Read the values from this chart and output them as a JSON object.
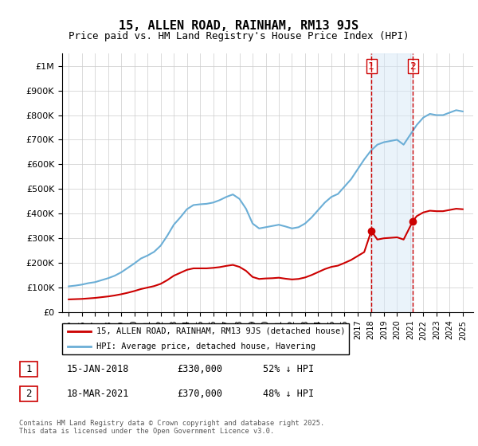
{
  "title": "15, ALLEN ROAD, RAINHAM, RM13 9JS",
  "subtitle": "Price paid vs. HM Land Registry's House Price Index (HPI)",
  "footer": "Contains HM Land Registry data © Crown copyright and database right 2025.\nThis data is licensed under the Open Government Licence v3.0.",
  "legend_line1": "15, ALLEN ROAD, RAINHAM, RM13 9JS (detached house)",
  "legend_line2": "HPI: Average price, detached house, Havering",
  "transaction1_label": "1",
  "transaction1_date": "15-JAN-2018",
  "transaction1_price": "£330,000",
  "transaction1_hpi": "52% ↓ HPI",
  "transaction2_label": "2",
  "transaction2_date": "18-MAR-2021",
  "transaction2_price": "£370,000",
  "transaction2_hpi": "48% ↓ HPI",
  "vline1_x": 2018.04,
  "vline2_x": 2021.21,
  "marker1_x": 2018.04,
  "marker1_y": 330000,
  "marker2_x": 2021.21,
  "marker2_y": 370000,
  "hpi_color": "#6baed6",
  "price_color": "#cc0000",
  "vline_color": "#cc0000",
  "shade_color": "#d6e8f7",
  "background_color": "#ffffff",
  "ylim": [
    0,
    1050000
  ],
  "xlim_start": 1994.5,
  "xlim_end": 2025.8,
  "yticks": [
    0,
    100000,
    200000,
    300000,
    400000,
    500000,
    600000,
    700000,
    800000,
    900000,
    1000000
  ],
  "ytick_labels": [
    "£0",
    "£100K",
    "£200K",
    "£300K",
    "£400K",
    "£500K",
    "£600K",
    "£700K",
    "£800K",
    "£900K",
    "£1M"
  ],
  "xticks": [
    1995,
    1996,
    1997,
    1998,
    1999,
    2000,
    2001,
    2002,
    2003,
    2004,
    2005,
    2006,
    2007,
    2008,
    2009,
    2010,
    2011,
    2012,
    2013,
    2014,
    2015,
    2016,
    2017,
    2018,
    2019,
    2020,
    2021,
    2022,
    2023,
    2024,
    2025
  ],
  "hpi_x": [
    1995.0,
    1995.5,
    1996.0,
    1996.5,
    1997.0,
    1997.5,
    1998.0,
    1998.5,
    1999.0,
    1999.5,
    2000.0,
    2000.5,
    2001.0,
    2001.5,
    2002.0,
    2002.5,
    2003.0,
    2003.5,
    2004.0,
    2004.5,
    2005.0,
    2005.5,
    2006.0,
    2006.5,
    2007.0,
    2007.5,
    2008.0,
    2008.5,
    2009.0,
    2009.5,
    2010.0,
    2010.5,
    2011.0,
    2011.5,
    2012.0,
    2012.5,
    2013.0,
    2013.5,
    2014.0,
    2014.5,
    2015.0,
    2015.5,
    2016.0,
    2016.5,
    2017.0,
    2017.5,
    2018.0,
    2018.5,
    2019.0,
    2019.5,
    2020.0,
    2020.5,
    2021.0,
    2021.5,
    2022.0,
    2022.5,
    2023.0,
    2023.5,
    2024.0,
    2024.5,
    2025.0
  ],
  "hpi_y": [
    105000,
    108000,
    112000,
    118000,
    122000,
    130000,
    138000,
    148000,
    162000,
    180000,
    198000,
    218000,
    230000,
    245000,
    270000,
    310000,
    355000,
    385000,
    418000,
    435000,
    438000,
    440000,
    445000,
    455000,
    468000,
    478000,
    460000,
    420000,
    360000,
    340000,
    345000,
    350000,
    355000,
    348000,
    340000,
    345000,
    360000,
    385000,
    415000,
    445000,
    468000,
    480000,
    510000,
    540000,
    580000,
    620000,
    655000,
    680000,
    690000,
    695000,
    700000,
    680000,
    720000,
    760000,
    790000,
    805000,
    800000,
    800000,
    810000,
    820000,
    815000
  ],
  "price_x": [
    1995.0,
    1995.5,
    1996.0,
    1996.5,
    1997.0,
    1997.5,
    1998.0,
    1998.5,
    1999.0,
    1999.5,
    2000.0,
    2000.5,
    2001.0,
    2001.5,
    2002.0,
    2002.5,
    2003.0,
    2003.5,
    2004.0,
    2004.5,
    2005.0,
    2005.5,
    2006.0,
    2006.5,
    2007.0,
    2007.5,
    2008.0,
    2008.5,
    2009.0,
    2009.5,
    2010.0,
    2010.5,
    2011.0,
    2011.5,
    2012.0,
    2012.5,
    2013.0,
    2013.5,
    2014.0,
    2014.5,
    2015.0,
    2015.5,
    2016.0,
    2016.5,
    2017.0,
    2017.5,
    2018.04,
    2018.5,
    2019.0,
    2019.5,
    2020.0,
    2020.5,
    2021.21,
    2021.5,
    2022.0,
    2022.5,
    2023.0,
    2023.5,
    2024.0,
    2024.5,
    2025.0
  ],
  "price_y": [
    52000,
    53000,
    54000,
    56000,
    58000,
    61000,
    64000,
    68000,
    73000,
    79000,
    86000,
    94000,
    100000,
    106000,
    115000,
    130000,
    148000,
    160000,
    172000,
    178000,
    178000,
    178000,
    180000,
    183000,
    188000,
    192000,
    184000,
    168000,
    143000,
    135000,
    137000,
    138000,
    140000,
    136000,
    133000,
    135000,
    141000,
    151000,
    163000,
    175000,
    184000,
    189000,
    200000,
    212000,
    228000,
    244000,
    330000,
    295000,
    300000,
    302000,
    304000,
    295000,
    370000,
    390000,
    405000,
    412000,
    410000,
    410000,
    415000,
    420000,
    418000
  ]
}
